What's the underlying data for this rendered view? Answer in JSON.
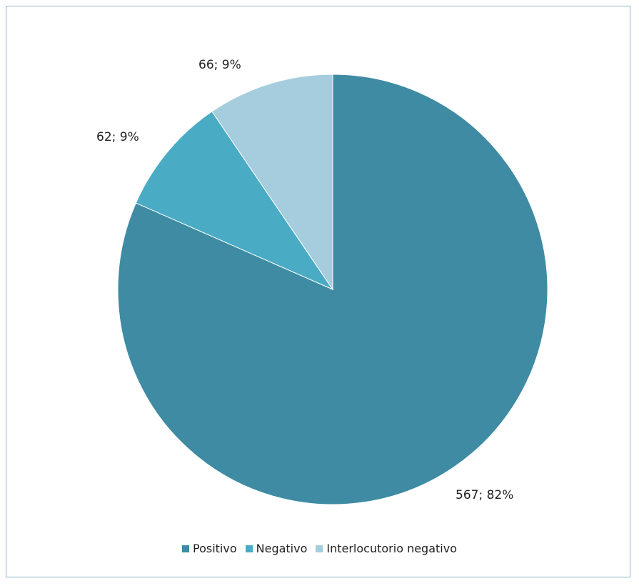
{
  "chart_data": {
    "type": "pie",
    "title": "",
    "categories": [
      "Positivo",
      "Negativo",
      "Interlocutorio negativo"
    ],
    "values": [
      567,
      62,
      66
    ],
    "data_labels": [
      "567; 82%",
      "62; 9%",
      "66; 9%"
    ],
    "colors": [
      "#3e8ba3",
      "#4aabc5",
      "#a5cddd"
    ],
    "start": "12 o'clock",
    "direction": "clockwise",
    "legend_position": "bottom",
    "grid": false
  }
}
